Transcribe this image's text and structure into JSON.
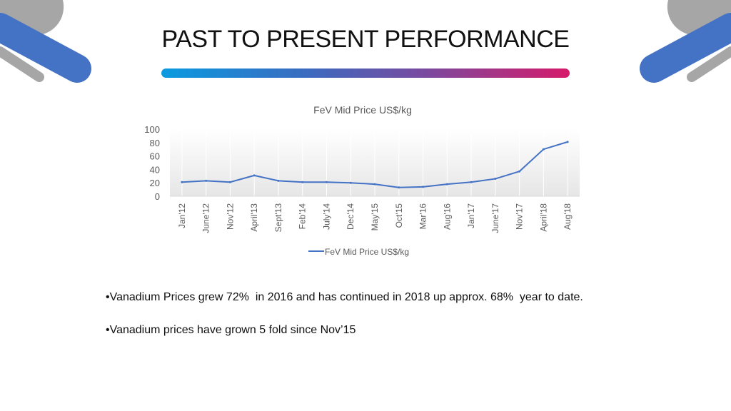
{
  "slide": {
    "title": "PAST TO PRESENT PERFORMANCE",
    "bullets": [
      "•Vanadium Prices grew 72%  in 2016 and has continued in 2018 up approx. 68%  year to date.",
      "•Vanadium prices have grown 5 fold since Nov’15"
    ]
  },
  "chart_data": {
    "type": "line",
    "title": "FeV Mid Price US$/kg",
    "xlabel": "",
    "ylabel": "",
    "ylim": [
      0,
      100
    ],
    "yticks": [
      0,
      20,
      40,
      60,
      80,
      100
    ],
    "grid": false,
    "legend": "bottom",
    "categories": [
      "Jan'12",
      "June'12",
      "Nov'12",
      "April'13",
      "Sept'13",
      "Feb'14",
      "July'14",
      "Dec'14",
      "May'15",
      "Oct'15",
      "Mar'16",
      "Aug'16",
      "Jan'17",
      "June'17",
      "Nov'17",
      "April'18",
      "Aug'18"
    ],
    "series": [
      {
        "name": "FeV Mid Price US$/kg",
        "color": "#4472c4",
        "values": [
          21,
          23,
          21,
          31,
          23,
          21,
          21,
          20,
          18,
          13,
          14,
          18,
          21,
          26,
          37,
          70,
          81
        ]
      }
    ]
  }
}
